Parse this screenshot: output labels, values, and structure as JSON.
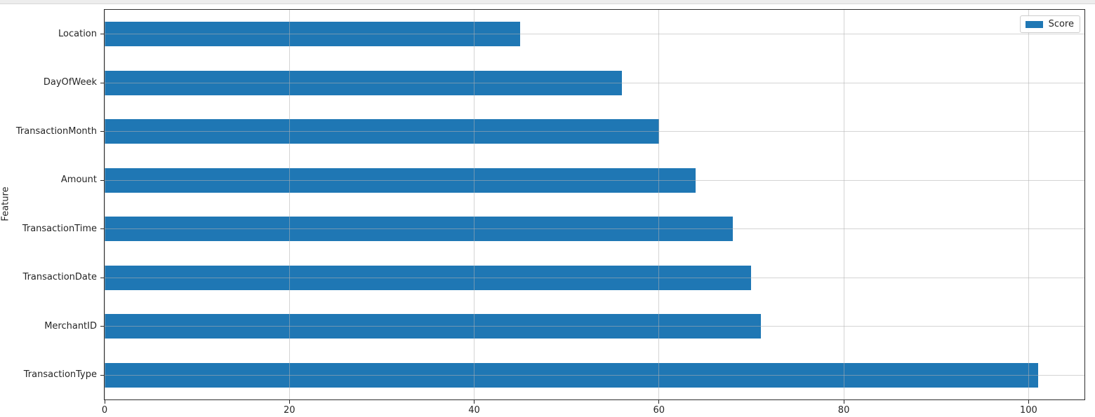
{
  "chart_data": {
    "type": "bar",
    "orientation": "horizontal",
    "title": "",
    "xlabel": "",
    "ylabel": "Feature",
    "categories": [
      "Location",
      "DayOfWeek",
      "TransactionMonth",
      "Amount",
      "TransactionTime",
      "TransactionDate",
      "MerchantID",
      "TransactionType"
    ],
    "categories_order": "top-to-bottom",
    "series": [
      {
        "name": "Score",
        "values": [
          45,
          56,
          60,
          64,
          68,
          70,
          71,
          101
        ]
      }
    ],
    "x_ticks": [
      "0",
      "20",
      "40",
      "60",
      "80",
      "100"
    ],
    "x_tick_values": [
      0,
      20,
      40,
      60,
      80,
      100
    ],
    "xlim": [
      0,
      106.05
    ],
    "grid": true,
    "grid_over_bars": true,
    "bar_color": "#1f77b4",
    "legend": {
      "label": "Score",
      "position": "upper-right",
      "swatch_color": "#1f77b4"
    }
  }
}
